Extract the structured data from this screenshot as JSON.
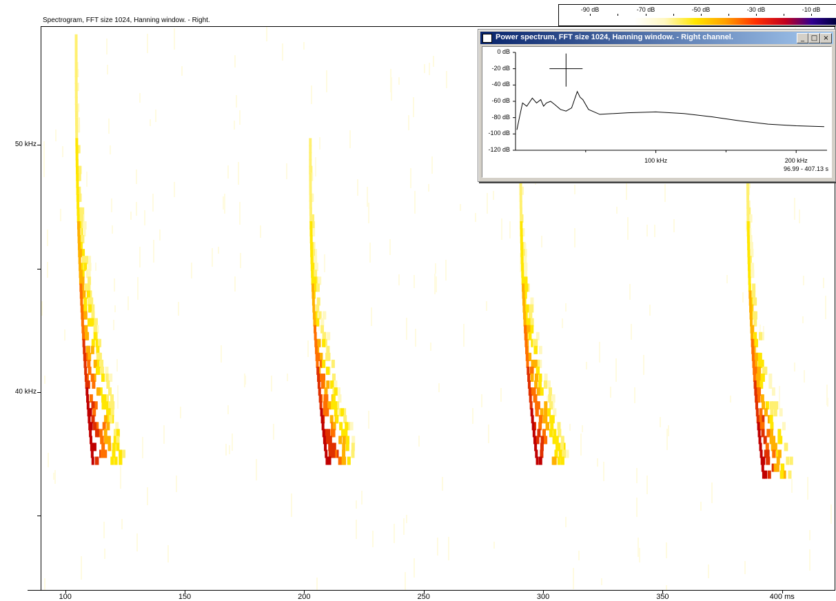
{
  "spectrogram": {
    "title": "Spectrogram, FFT size 1024, Hanning window. - Right.",
    "y_labels": [
      {
        "text": "50 kHz",
        "value": 50
      },
      {
        "text": "40 kHz",
        "value": 40
      }
    ],
    "x_labels": [
      {
        "text": "100",
        "value": 100
      },
      {
        "text": "150",
        "value": 150
      },
      {
        "text": "200",
        "value": 200
      },
      {
        "text": "250",
        "value": 250
      },
      {
        "text": "300",
        "value": 300
      },
      {
        "text": "350",
        "value": 350
      },
      {
        "text": "400 ms",
        "value": 400
      }
    ],
    "x_range_ms": [
      90,
      422
    ],
    "y_range_khz": [
      32,
      54.8
    ],
    "calls_start_ms": [
      104,
      202,
      290,
      385
    ]
  },
  "color_scale": {
    "labels": [
      "-90 dB",
      "-70 dB",
      "-50 dB",
      "-30 dB",
      "-10 dB"
    ],
    "colors": [
      "#ffffff",
      "#ffe600",
      "#ff3000",
      "#300090",
      "#000040"
    ]
  },
  "power_window": {
    "title": "Power spectrum, FFT size 1024, Hanning window. - Right channel.",
    "buttons": {
      "minimize": "_",
      "maximize": "□",
      "close": "×"
    },
    "y_labels": [
      "0 dB",
      "-20 dB",
      "-40 dB",
      "-60 dB",
      "-80 dB",
      "-100 dB",
      "-120 dB"
    ],
    "x_labels": [
      "100 kHz",
      "200 kHz"
    ],
    "range_text": "96.99 - 407.13 s",
    "chart_data": {
      "type": "line",
      "x_khz": [
        1,
        3,
        5,
        8,
        12,
        15,
        18,
        20,
        22,
        25,
        28,
        32,
        36,
        40,
        44,
        46,
        48,
        52,
        60,
        80,
        100,
        120,
        140,
        160,
        180,
        200,
        220
      ],
      "y_db": [
        -95,
        -78,
        -62,
        -66,
        -56,
        -62,
        -58,
        -66,
        -62,
        -60,
        -64,
        -70,
        -72,
        -68,
        -48,
        -55,
        -58,
        -70,
        -76,
        -74,
        -73,
        -75,
        -79,
        -84,
        -88,
        -90,
        -91
      ],
      "ylim": [
        -120,
        0
      ],
      "xlim": [
        0,
        222
      ]
    }
  }
}
